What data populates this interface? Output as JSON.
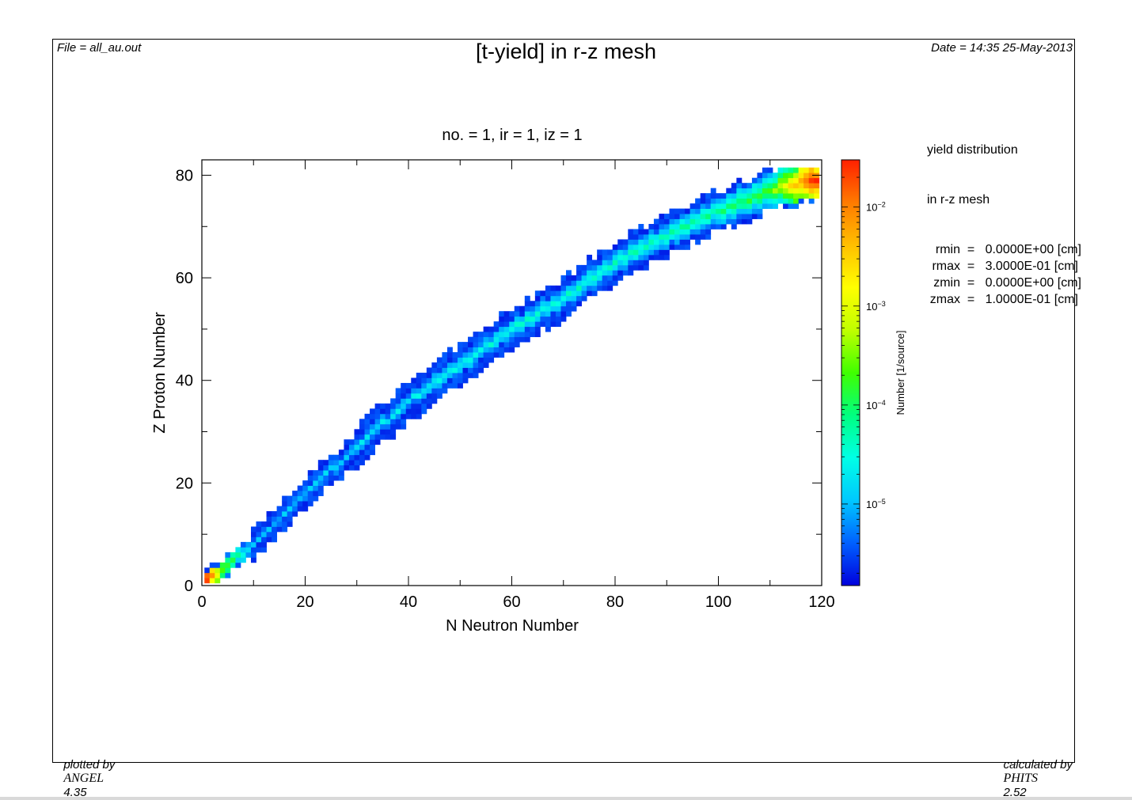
{
  "header": {
    "file": "File = all_au.out",
    "title": "[t-yield] in r-z mesh",
    "date": "Date = 14:35 25-May-2013"
  },
  "footer": {
    "plotted_prefix": "plotted by",
    "plotted_logo": "ANGEL",
    "plotted_version": "4.35",
    "calculated_prefix": "calculated by",
    "calculated_logo": "PHITS",
    "calculated_version": "2.52"
  },
  "info": {
    "line1": "yield distribution",
    "line2": "in r-z mesh",
    "params": [
      {
        "label": "rmin",
        "value": "0.0000E+00",
        "unit": "[cm]"
      },
      {
        "label": "rmax",
        "value": "3.0000E-01",
        "unit": "[cm]"
      },
      {
        "label": "zmin",
        "value": "0.0000E+00",
        "unit": "[cm]"
      },
      {
        "label": "zmax",
        "value": "1.0000E-01",
        "unit": "[cm]"
      }
    ]
  },
  "chart_data": {
    "type": "heatmap",
    "subtitle": "no. =   1,    ir =    1,    iz =    1",
    "xlabel": "N Neutron Number",
    "ylabel": "Z Proton Number",
    "xlim": [
      0,
      120
    ],
    "ylim": [
      0,
      83
    ],
    "xticks": [
      0,
      20,
      40,
      60,
      80,
      100,
      120
    ],
    "yticks": [
      0,
      20,
      40,
      60,
      80
    ],
    "colorbar": {
      "label": "Number [1/source]",
      "scale": "log",
      "range": [
        1.5e-06,
        0.03
      ],
      "ticks": [
        {
          "label": "10",
          "exp": "-2"
        },
        {
          "label": "10",
          "exp": "-3"
        },
        {
          "label": "10",
          "exp": "-4"
        },
        {
          "label": "10",
          "exp": "-5"
        }
      ],
      "colors": [
        "#0000dd",
        "#0060ff",
        "#00c8ff",
        "#00ffe6",
        "#00ff80",
        "#40ff00",
        "#c0ff00",
        "#ffff00",
        "#ffbf00",
        "#ff7a00",
        "#ff2000"
      ]
    },
    "band": {
      "description_points": [
        {
          "N": 1,
          "Z": 1,
          "value": 0.03
        },
        {
          "N": 4,
          "Z": 3,
          "value": 0.0003
        },
        {
          "N": 10,
          "Z": 8,
          "value": 1e-05
        },
        {
          "N": 20,
          "Z": 18,
          "value": 1.2e-05
        },
        {
          "N": 30,
          "Z": 27,
          "value": 1.5e-05
        },
        {
          "N": 40,
          "Z": 36,
          "value": 2e-05
        },
        {
          "N": 50,
          "Z": 43,
          "value": 2.5e-05
        },
        {
          "N": 60,
          "Z": 50,
          "value": 3e-05
        },
        {
          "N": 70,
          "Z": 56,
          "value": 3.5e-05
        },
        {
          "N": 80,
          "Z": 63,
          "value": 4e-05
        },
        {
          "N": 90,
          "Z": 68,
          "value": 5e-05
        },
        {
          "N": 100,
          "Z": 73,
          "value": 7e-05
        },
        {
          "N": 110,
          "Z": 77,
          "value": 0.0002
        },
        {
          "N": 118,
          "Z": 79,
          "value": 0.025
        }
      ]
    }
  }
}
